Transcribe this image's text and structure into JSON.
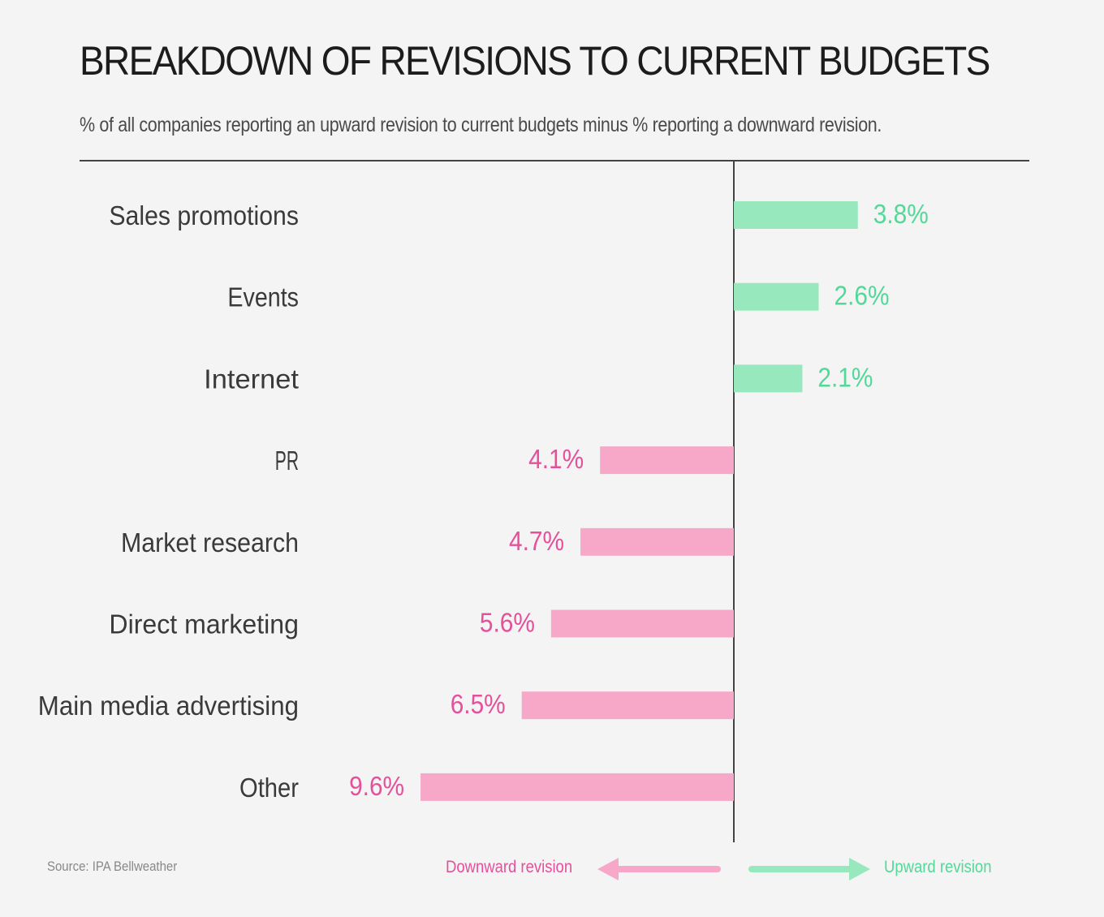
{
  "colors": {
    "up": "#98e8be",
    "up_text": "#52d898",
    "down": "#f7a8c8",
    "down_text": "#e5509a",
    "axis": "#444444"
  },
  "chart_data": {
    "type": "bar",
    "orientation": "horizontal",
    "title": "BREAKDOWN OF REVISIONS TO CURRENT BUDGETS",
    "subtitle": "% of all companies reporting an upward revision to current budgets minus % reporting a downward revision.",
    "categories": [
      "Sales promotions",
      "Events",
      "Internet",
      "PR",
      "Market research",
      "Direct marketing",
      "Main media advertising",
      "Other"
    ],
    "values": [
      3.8,
      2.6,
      2.1,
      -4.1,
      -4.7,
      -5.6,
      -6.5,
      -9.6
    ],
    "value_labels": [
      "3.8%",
      "2.6%",
      "2.1%",
      "4.1%",
      "4.7%",
      "5.6%",
      "6.5%",
      "9.6%"
    ],
    "xlim": [
      -10,
      10
    ],
    "grid": false,
    "legend": {
      "down": "Downward revision",
      "up": "Upward revision"
    },
    "source": "Source: IPA Bellweather"
  }
}
